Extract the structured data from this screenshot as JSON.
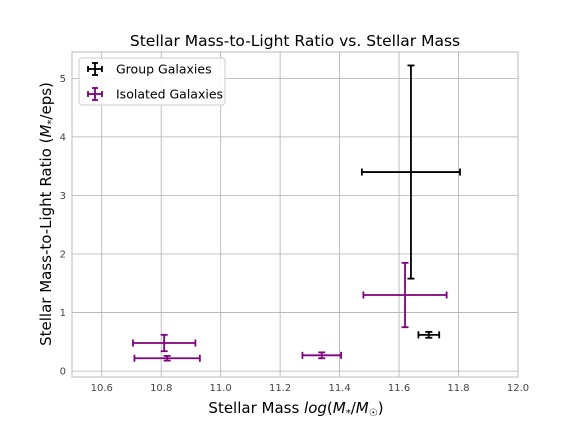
{
  "chart_data": {
    "type": "scatter",
    "title": "Stellar Mass-to-Light Ratio vs. Stellar Mass",
    "xlabel": "Stellar Mass log(M*/M☉)",
    "ylabel": "Stellar Mass-to-Light Ratio (M*/eps)",
    "xlim": [
      10.5,
      12.0
    ],
    "ylim": [
      -0.1,
      5.45
    ],
    "xticks": [
      "10.6",
      "10.8",
      "11.0",
      "11.2",
      "11.4",
      "11.6",
      "11.8",
      "12.0"
    ],
    "yticks": [
      "0",
      "1",
      "2",
      "3",
      "4",
      "5"
    ],
    "grid": true,
    "legend_position": "top-left",
    "series": [
      {
        "name": "Group Galaxies",
        "color": "#000000",
        "points": [
          {
            "x": 11.64,
            "y": 3.4,
            "xerr": 0.165,
            "yerr": 1.82
          },
          {
            "x": 11.7,
            "y": 0.62,
            "xerr": 0.035,
            "yerr": 0.05
          }
        ]
      },
      {
        "name": "Isolated Galaxies",
        "color": "#800080",
        "points": [
          {
            "x": 10.81,
            "y": 0.48,
            "xerr": 0.105,
            "yerr": 0.14
          },
          {
            "x": 10.82,
            "y": 0.22,
            "xerr": 0.11,
            "yerr": 0.04
          },
          {
            "x": 11.34,
            "y": 0.27,
            "xerr": 0.065,
            "yerr": 0.05
          },
          {
            "x": 11.62,
            "y": 1.3,
            "xerr": 0.14,
            "yerr": 0.55
          }
        ]
      }
    ]
  }
}
